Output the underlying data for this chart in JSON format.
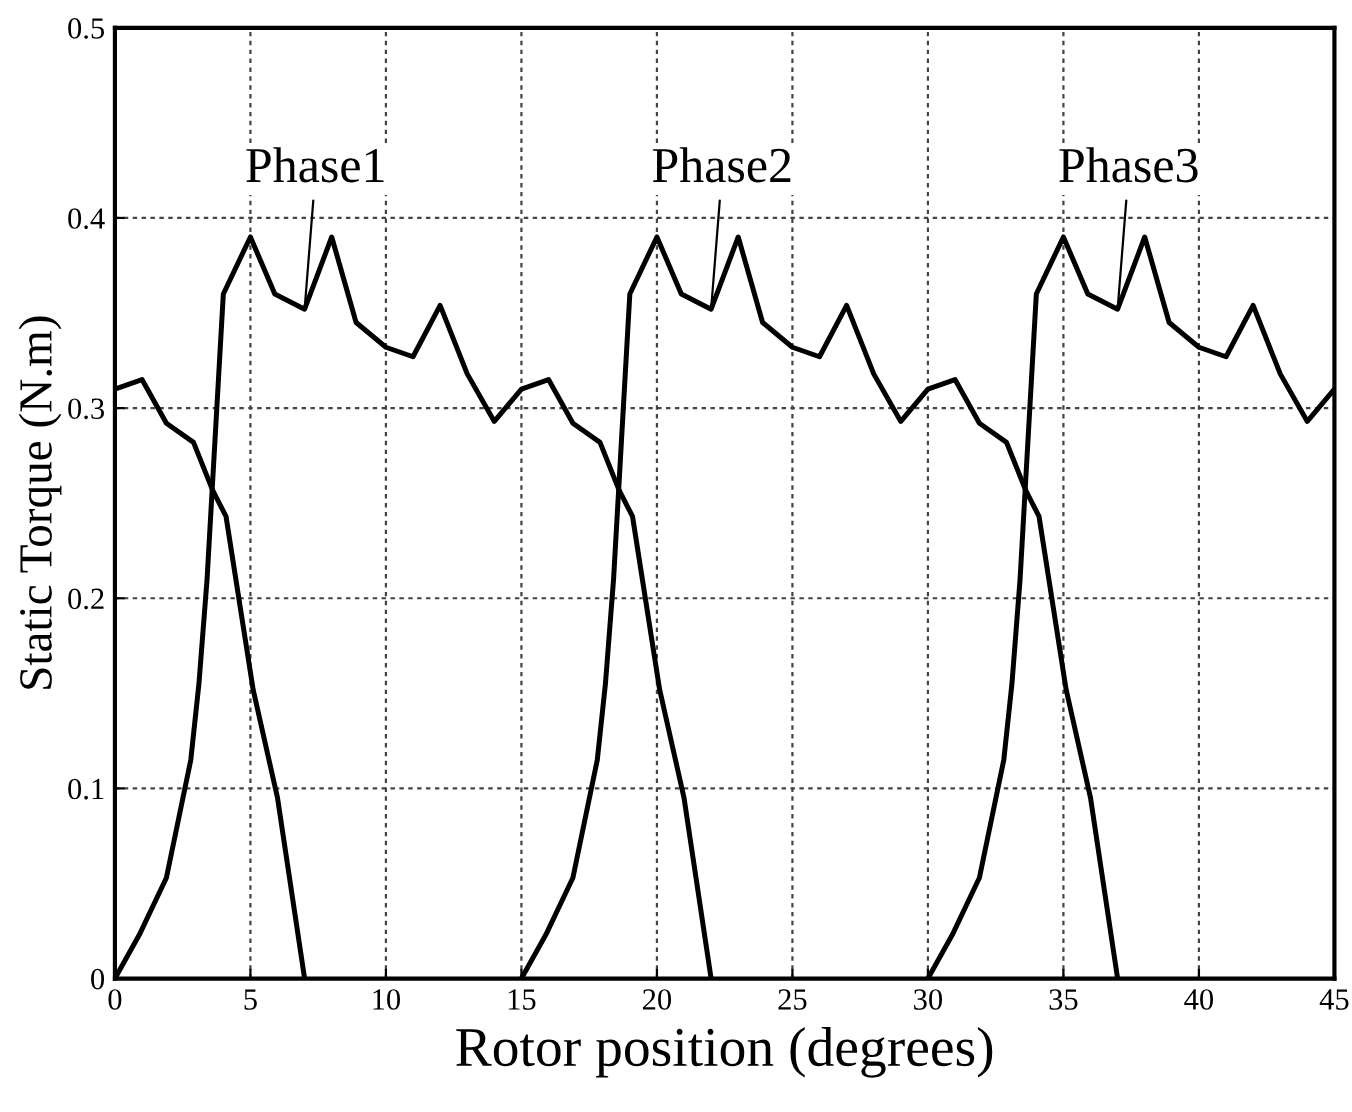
{
  "chart_data": {
    "type": "line",
    "xlabel": "Rotor position (degrees)",
    "ylabel": "Static Torque (N.m)",
    "xlim": [
      0,
      45
    ],
    "xticks": [
      0,
      5,
      10,
      15,
      20,
      25,
      30,
      35,
      40,
      45
    ],
    "ylim": [
      0,
      0.5
    ],
    "yticks": [
      0,
      0.1,
      0.2,
      0.3,
      0.4,
      0.5
    ],
    "grid": true,
    "line_style": "solid",
    "marker": "none",
    "series": [
      {
        "color": "#000000",
        "x": [
          0,
          1,
          1.9,
          2.9,
          3.6,
          4.1,
          5.1,
          6,
          7
        ],
        "values": [
          0.31,
          0.315,
          0.292,
          0.282,
          0.257,
          0.243,
          0.152,
          0.095,
          0
        ]
      },
      {
        "name": "Phase1",
        "color": "#000000",
        "x": [
          0,
          0.9,
          1.9,
          2.8,
          3.1,
          3.4,
          3.6,
          4,
          5,
          5.9,
          7,
          8,
          8.9,
          10,
          11,
          12,
          13,
          14,
          15,
          16,
          16.9,
          17.9,
          18.6,
          19.1,
          20.1,
          21,
          22
        ],
        "values": [
          0,
          0.023,
          0.053,
          0.115,
          0.155,
          0.21,
          0.26,
          0.36,
          0.39,
          0.36,
          0.352,
          0.39,
          0.345,
          0.332,
          0.327,
          0.354,
          0.318,
          0.293,
          0.31,
          0.315,
          0.292,
          0.282,
          0.257,
          0.243,
          0.152,
          0.095,
          0
        ]
      },
      {
        "name": "Phase2",
        "color": "#000000",
        "x": [
          15,
          15.9,
          16.9,
          17.8,
          18.1,
          18.4,
          18.6,
          19,
          20,
          20.9,
          22,
          23,
          23.9,
          25,
          26,
          27,
          28,
          29,
          30,
          31,
          31.9,
          32.9,
          33.6,
          34.1,
          35.1,
          36,
          37
        ],
        "values": [
          0,
          0.023,
          0.053,
          0.115,
          0.155,
          0.21,
          0.26,
          0.36,
          0.39,
          0.36,
          0.352,
          0.39,
          0.345,
          0.332,
          0.327,
          0.354,
          0.318,
          0.293,
          0.31,
          0.315,
          0.292,
          0.282,
          0.257,
          0.243,
          0.152,
          0.095,
          0
        ]
      },
      {
        "name": "Phase3",
        "color": "#000000",
        "x": [
          30,
          30.9,
          31.9,
          32.8,
          33.1,
          33.4,
          33.6,
          34,
          35,
          35.9,
          37,
          38,
          38.9,
          40,
          41,
          42,
          43,
          44,
          45
        ],
        "values": [
          0,
          0.023,
          0.053,
          0.115,
          0.155,
          0.21,
          0.26,
          0.36,
          0.39,
          0.36,
          0.352,
          0.39,
          0.345,
          0.332,
          0.327,
          0.354,
          0.318,
          0.293,
          0.31
        ]
      }
    ]
  }
}
